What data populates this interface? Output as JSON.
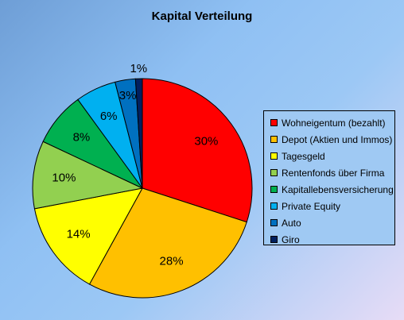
{
  "chart_data": {
    "type": "pie",
    "title": "Kapital Verteilung",
    "categories": [
      "Wohneigentum (bezahlt)",
      "Depot (Aktien und Immos)",
      "Tagesgeld",
      "Rentenfonds über Firma",
      "Kapitallebensversicherung",
      "Private Equity",
      "Auto",
      "Giro"
    ],
    "values": [
      30,
      28,
      14,
      10,
      8,
      6,
      3,
      1
    ],
    "data_labels": [
      "30%",
      "28%",
      "14%",
      "10%",
      "8%",
      "6%",
      "3%",
      "1%"
    ],
    "colors": [
      "#ff0000",
      "#ffc000",
      "#ffff00",
      "#92d050",
      "#00b050",
      "#00b0f0",
      "#0070c0",
      "#002060"
    ],
    "legend_position": "right"
  }
}
